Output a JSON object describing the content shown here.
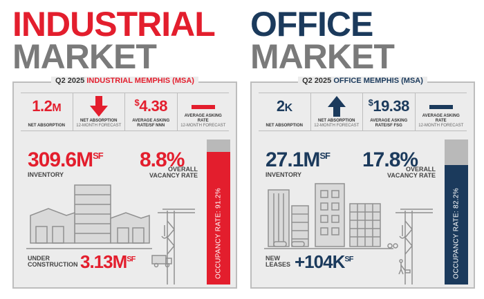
{
  "industrial": {
    "title_line1": "INDUSTRIAL",
    "title_line2": "MARKET",
    "card_title_prefix": "Q2 2025",
    "card_title_rest": "INDUSTRIAL MEMPHIS (MSA)",
    "kpi1_value": "1.2",
    "kpi1_unit": "M",
    "kpi1_label": "NET ABSORPTION",
    "kpi2_label": "NET ABSORPTION",
    "kpi2_sub": "12-MONTH FORECAST",
    "kpi3_dollar": "$",
    "kpi3_value": "4.38",
    "kpi3_label": "AVERAGE ASKING RATE/SF NNN",
    "kpi4_label": "AVERAGE ASKING RATE",
    "kpi4_sub": "12-MONTH FORECAST",
    "inventory_value": "309.6",
    "inventory_unit": "M",
    "inventory_sup": "SF",
    "inventory_label": "INVENTORY",
    "vacancy_value": "8.8",
    "vacancy_unit": "%",
    "vacancy_label_1": "OVERALL",
    "vacancy_label_2": "VACANCY RATE",
    "occupancy_text": "OCCUPANCY RATE: 91.2%",
    "occupancy_fraction": 0.912,
    "bottom_label_1": "UNDER",
    "bottom_label_2": "CONSTRUCTION",
    "bottom_value": "3.13",
    "bottom_unit": "M",
    "bottom_sup": "SF"
  },
  "office": {
    "title_line1": "OFFICE",
    "title_line2": "MARKET",
    "card_title_prefix": "Q2 2025",
    "card_title_rest": "OFFICE MEMPHIS (MSA)",
    "kpi1_value": "2",
    "kpi1_unit": "K",
    "kpi1_label": "NET ABSORPTION",
    "kpi2_label": "NET ABSORPTION",
    "kpi2_sub": "12-MONTH FORECAST",
    "kpi3_dollar": "$",
    "kpi3_value": "19.38",
    "kpi3_label": "AVERAGE ASKING RATE/SF FSG",
    "kpi4_label": "AVERAGE ASKING RATE",
    "kpi4_sub": "12-MONTH FORECAST",
    "inventory_value": "27.1",
    "inventory_unit": "M",
    "inventory_sup": "SF",
    "inventory_label": "INVENTORY",
    "vacancy_value": "17.8",
    "vacancy_unit": "%",
    "vacancy_label_1": "OVERALL",
    "vacancy_label_2": "VACANCY RATE",
    "occupancy_text": "OCCUPANCY RATE: 82.2%",
    "occupancy_fraction": 0.822,
    "bottom_label_1": "NEW",
    "bottom_label_2": "LEASES",
    "bottom_value": "+104",
    "bottom_unit": "K",
    "bottom_sup": "SF"
  },
  "colors": {
    "industrial_accent": "#e31e2d",
    "office_accent": "#1b3a5c",
    "gray_text": "#7a7a7a",
    "card_bg": "#ececec"
  }
}
